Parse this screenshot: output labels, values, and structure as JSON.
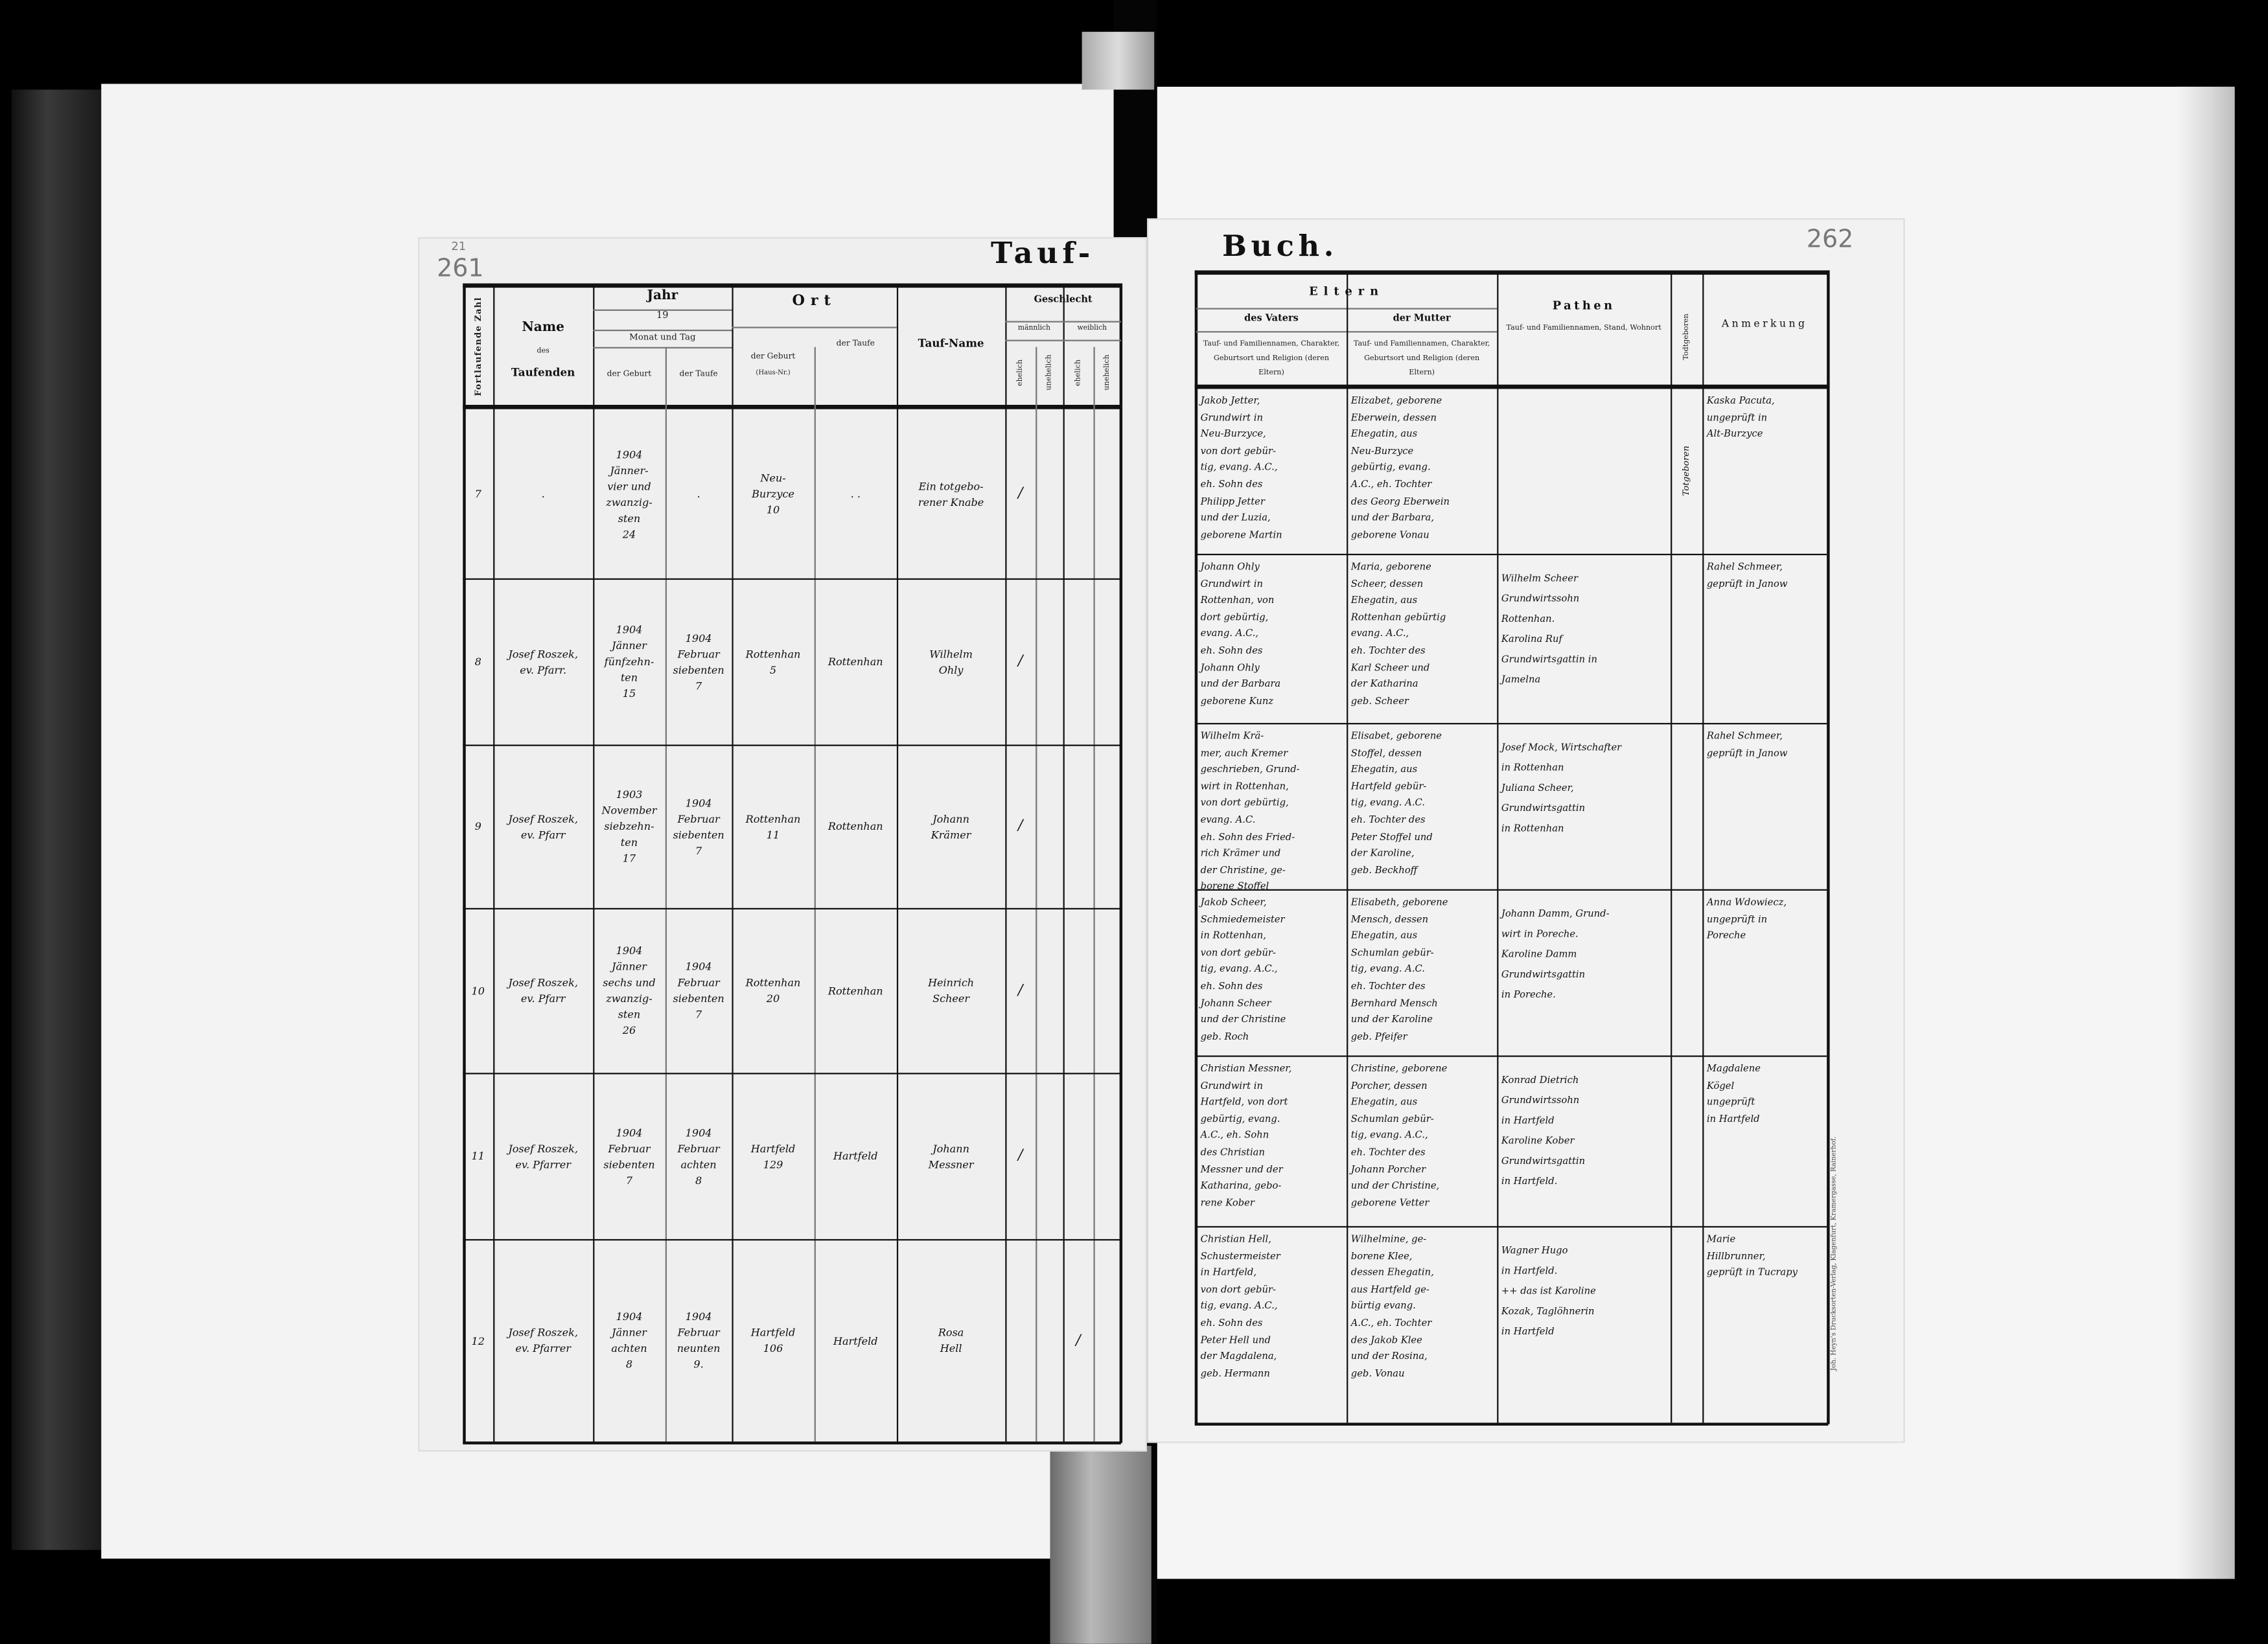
{
  "left_page": {
    "pencil_marks": [
      "21",
      "261"
    ],
    "title": "Tauf-",
    "headers": {
      "running_number": "Fortlaufende Zahl",
      "name_title": "Name",
      "name_des": "des",
      "name_sub": "Taufenden",
      "year_title": "Jahr",
      "year_century": "19",
      "month_day": "Monat und Tag",
      "birth": "der Geburt",
      "baptism": "der Taufe",
      "place_title": "Ort",
      "place_birth": "der Geburt",
      "house_no": "(Haus-Nr.)",
      "place_baptism": "der Taufe",
      "baptismal_name": "Tauf-Name",
      "sex_title": "Geschlecht",
      "male": "männlich",
      "female": "weiblich",
      "legitimate": "ehelich",
      "illegitimate": "unehelich"
    },
    "rows": [
      {
        "number": "7",
        "officiant": ".",
        "birth_date": "1904\nJänner-\nvier und\nzwanzig-\nsten\n24",
        "baptism_date": ".",
        "birth_place": "Neu-\nBurzyce\n10",
        "baptism_place": ". .",
        "child_name": "Ein totgebo-\nrener Knabe",
        "sex_marks": [
          "/",
          "",
          "",
          ""
        ]
      },
      {
        "number": "8",
        "officiant": "Josef Roszek,\nev. Pfarr.",
        "birth_date": "1904\nJänner\nfünfzehn-\nten\n15",
        "baptism_date": "1904\nFebruar\nsiebenten\n7",
        "birth_place": "Rottenhan\n5",
        "baptism_place": "Rottenhan",
        "child_name": "Wilhelm\nOhly",
        "sex_marks": [
          "/",
          "",
          "",
          ""
        ]
      },
      {
        "number": "9",
        "officiant": "Josef Roszek,\nev. Pfarr",
        "birth_date": "1903\nNovember\nsiebzehn-\nten\n17",
        "baptism_date": "1904\nFebruar\nsiebenten\n7",
        "birth_place": "Rottenhan\n11",
        "baptism_place": "Rottenhan",
        "child_name": "Johann\nKrämer",
        "sex_marks": [
          "/",
          "",
          "",
          ""
        ]
      },
      {
        "number": "10",
        "officiant": "Josef Roszek,\nev. Pfarr",
        "birth_date": "1904\nJänner\nsechs und\nzwanzig-\nsten\n26",
        "baptism_date": "1904\nFebruar\nsiebenten\n7",
        "birth_place": "Rottenhan\n20",
        "baptism_place": "Rottenhan",
        "child_name": "Heinrich\nScheer",
        "sex_marks": [
          "/",
          "",
          "",
          ""
        ]
      },
      {
        "number": "11",
        "officiant": "Josef Roszek,\nev. Pfarrer",
        "birth_date": "1904\nFebruar\nsiebenten\n7",
        "baptism_date": "1904\nFebruar\nachten\n8",
        "birth_place": "Hartfeld\n129",
        "baptism_place": "Hartfeld",
        "child_name": "Johann\nMessner",
        "sex_marks": [
          "/",
          "",
          "",
          ""
        ]
      },
      {
        "number": "12",
        "officiant": "Josef Roszek,\nev. Pfarrer",
        "birth_date": "1904\nJänner\nachten\n8",
        "baptism_date": "1904\nFebruar\nneunten\n9.",
        "birth_place": "Hartfeld\n106",
        "baptism_place": "Hartfeld",
        "child_name": "Rosa\nHell",
        "sex_marks": [
          "",
          "",
          "/",
          ""
        ]
      }
    ]
  },
  "right_page": {
    "title": "Buch.",
    "pencil_page_number": "262",
    "headers": {
      "parents_title": "Eltern",
      "father": "des Vaters",
      "mother": "der Mutter",
      "parent_desc": "Tauf- und Familiennamen, Charakter, Geburtsort und Religion (deren Eltern)",
      "godparents_title": "Pathen",
      "godparents_desc": "Tauf- und Familiennamen, Stand, Wohnort",
      "stillborn": "Todtgeboren",
      "remarks": "Anmerkung"
    },
    "rows": [
      {
        "father": "Jakob Jetter,\nGrundwirt in\nNeu-Burzyce,\nvon dort gebür-\ntig, evang. A.C.,\neh. Sohn des\nPhilipp Jetter\nund der Luzia,\ngeborene Martin",
        "mother": "Elizabet, geborene\nEberwein, dessen\nEhegatin, aus\nNeu-Burzyce\ngebürtig, evang.\nA.C., eh. Tochter\ndes Georg Eberwein\nund der Barbara,\ngeborene Vonau",
        "godparents": "",
        "stillborn": "Totgeboren",
        "remarks": "Kaska Pacuta,\nungeprüft in\nAlt-Burzyce"
      },
      {
        "father": "Johann Ohly\nGrundwirt in\nRottenhan, von\ndort gebürtig,\nevang. A.C.,\neh. Sohn des\nJohann Ohly\nund der Barbara\ngeborene Kunz",
        "mother": "Maria, geborene\nScheer, dessen\nEhegatin, aus\nRottenhan gebürtig\nevang. A.C.,\neh. Tochter des\nKarl Scheer und\nder Katharina\ngeb. Scheer",
        "godparents": "Wilhelm Scheer\nGrundwirtssohn\nRottenhan.\nKarolina Ruf\nGrundwirtsgattin in\nJamelna",
        "stillborn": "",
        "remarks": "Rahel Schmeer,\ngeprüft in Janow"
      },
      {
        "father": "Wilhelm Krä-\nmer, auch Kremer\ngeschrieben, Grund-\nwirt in Rottenhan,\nvon dort gebürtig,\nevang. A.C.\neh. Sohn des Fried-\nrich Krämer und\nder Christine, ge-\nborene Stoffel",
        "mother": "Elisabet, geborene\nStoffel, dessen\nEhegatin, aus\nHartfeld gebür-\ntig, evang. A.C.\neh. Tochter des\nPeter Stoffel und\nder Karoline,\ngeb. Beckhoff",
        "godparents": "Josef Mock, Wirtschafter\nin Rottenhan\nJuliana Scheer,\nGrundwirtsgattin\nin Rottenhan",
        "stillborn": "",
        "remarks": "Rahel Schmeer,\ngeprüft in Janow"
      },
      {
        "father": "Jakob Scheer,\nSchmiedemeister\nin Rottenhan,\nvon dort gebür-\ntig, evang. A.C.,\neh. Sohn des\nJohann Scheer\nund der Christine\ngeb. Roch",
        "mother": "Elisabeth, geborene\nMensch, dessen\nEhegatin, aus\nSchumlan gebür-\ntig, evang. A.C.\neh. Tochter des\nBernhard Mensch\nund der Karoline\ngeb. Pfeifer",
        "godparents": "Johann Damm, Grund-\nwirt in Poreche.\nKaroline Damm\nGrundwirtsgattin\nin Poreche.",
        "stillborn": "",
        "remarks": "Anna Wdowiecz,\nungeprüft in\nPoreche"
      },
      {
        "father": "Christian Messner,\nGrundwirt in\nHartfeld, von dort\ngebürtig, evang.\nA.C., eh. Sohn\ndes Christian\nMessner und der\nKatharina, gebo-\nrene Kober",
        "mother": "Christine, geborene\nPorcher, dessen\nEhegatin, aus\nSchumlan gebür-\ntig, evang. A.C.,\neh. Tochter des\nJohann Porcher\nund der Christine,\ngeborene Vetter",
        "godparents": "Konrad Dietrich\nGrundwirtssohn\nin Hartfeld\nKaroline Kober\nGrundwirtsgattin\nin Hartfeld.",
        "stillborn": "",
        "remarks": "Magdalene\nKögel\nungeprüft\nin Hartfeld"
      },
      {
        "father": "Christian Hell,\nSchustermeister\nin Hartfeld,\nvon dort gebür-\ntig, evang. A.C.,\neh. Sohn des\nPeter Hell und\nder Magdalena,\ngeb. Hermann",
        "mother": "Wilhelmine, ge-\nborene Klee,\ndessen Ehegatin,\naus Hartfeld ge-\nbürtig evang.\nA.C., eh. Tochter\ndes Jakob Klee\nund der Rosina,\ngeb. Vonau",
        "godparents": "Wagner Hugo\nin Hartfeld.\n++ das ist Karoline\nKozak, Taglöhnerin\nin Hartfeld",
        "stillborn": "",
        "remarks": "Marie\nHillbrunner,\ngeprüft in Tucrapy"
      }
    ],
    "printer_imprint": "Joh. Heyn's Drucksorten-Verlag, Klagenfurt, Kramergasse, Rainerhof."
  }
}
